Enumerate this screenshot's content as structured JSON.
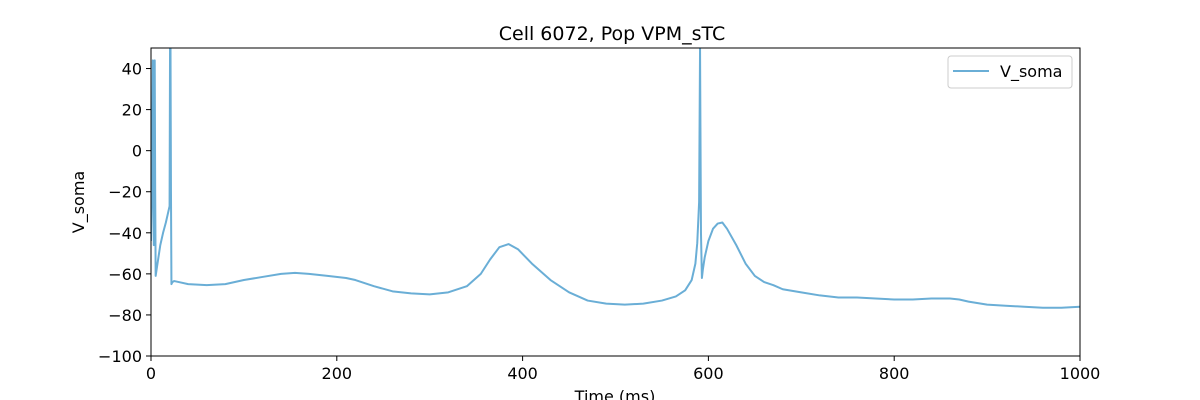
{
  "chart_data": {
    "type": "line",
    "title": "Cell 6072, Pop VPM_sTC",
    "xlabel": "Time (ms)",
    "ylabel": "V_soma",
    "xlim": [
      0,
      1000
    ],
    "ylim": [
      -100,
      50
    ],
    "xticks": [
      0,
      200,
      400,
      600,
      800,
      1000
    ],
    "yticks": [
      -100,
      -80,
      -60,
      -40,
      -20,
      0,
      20,
      40
    ],
    "grid": false,
    "legend": {
      "position": "top-right",
      "entries": [
        "V_soma"
      ]
    },
    "series": [
      {
        "name": "V_soma",
        "color": "#6aaed6",
        "x": [
          0,
          1,
          2,
          2.5,
          3,
          3.5,
          4,
          4.5,
          5,
          6,
          8,
          10,
          13,
          16,
          18,
          20,
          20.5,
          21,
          21.5,
          22,
          23,
          25,
          30,
          40,
          60,
          80,
          100,
          120,
          140,
          155,
          170,
          190,
          210,
          220,
          240,
          260,
          280,
          300,
          320,
          340,
          355,
          365,
          375,
          385,
          395,
          410,
          430,
          450,
          470,
          490,
          510,
          530,
          550,
          565,
          575,
          582,
          586,
          588,
          590,
          591,
          592,
          593,
          594,
          596,
          600,
          605,
          610,
          615,
          620,
          630,
          640,
          650,
          660,
          670,
          680,
          700,
          720,
          740,
          760,
          780,
          800,
          820,
          840,
          860,
          870,
          880,
          900,
          920,
          940,
          960,
          970,
          980,
          1000
        ],
        "y": [
          -44,
          -20,
          44,
          10,
          -46,
          -20,
          44,
          -20,
          -61,
          -58,
          -52,
          -46,
          -40,
          -35,
          -31,
          -27,
          50,
          50,
          -20,
          -65,
          -64,
          -63.5,
          -64,
          -65,
          -65.5,
          -65,
          -63,
          -61.5,
          -60,
          -59.5,
          -60,
          -61,
          -62,
          -63,
          -66,
          -68.5,
          -69.5,
          -70,
          -69,
          -66,
          -60,
          -53,
          -47,
          -45.5,
          -48,
          -55,
          -63,
          -69,
          -73,
          -74.5,
          -75,
          -74.5,
          -73,
          -71,
          -68,
          -63,
          -55,
          -45,
          -25,
          50,
          -40,
          -62,
          -58,
          -52,
          -44,
          -38,
          -35.5,
          -35,
          -38,
          -46,
          -55,
          -61,
          -64,
          -65.5,
          -67.5,
          -69,
          -70.5,
          -71.5,
          -71.5,
          -72,
          -72.5,
          -72.5,
          -72,
          -72,
          -72.5,
          -73.5,
          -75,
          -75.5,
          -76,
          -76.5,
          -76.5,
          -76.5,
          -76
        ]
      }
    ]
  }
}
